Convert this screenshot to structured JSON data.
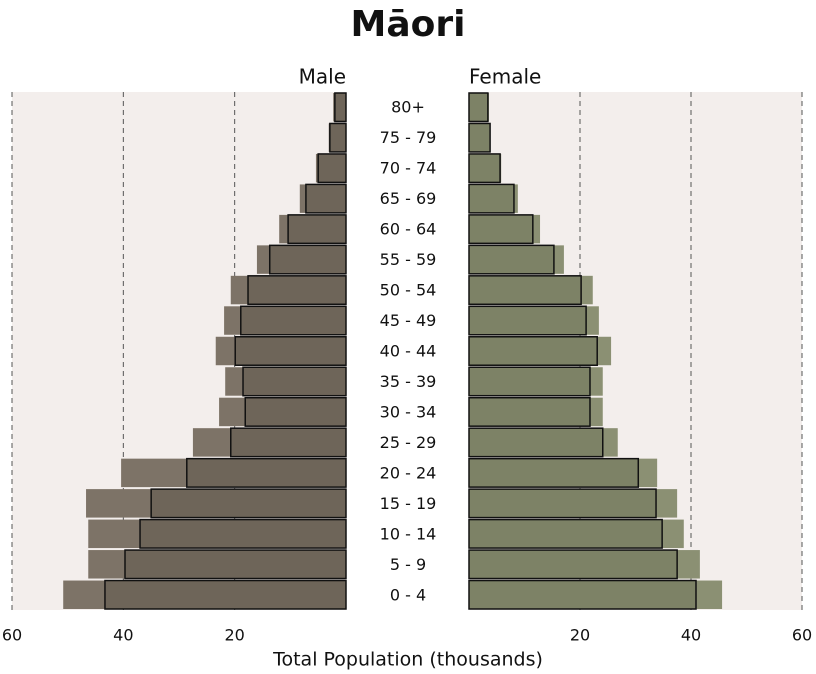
{
  "chart_data": {
    "type": "pyramid",
    "title": "Māori",
    "categories": [
      "80+",
      "75 - 79",
      "70 - 74",
      "65 - 69",
      "60 - 64",
      "55 - 59",
      "50 - 54",
      "45 - 49",
      "40 - 44",
      "35 - 39",
      "30 - 34",
      "25 - 29",
      "20 - 24",
      "15 - 19",
      "10 - 14",
      "5 - 9",
      "0 - 4"
    ],
    "series": [
      {
        "name": "Male",
        "side": "left",
        "color": "#6e6559",
        "shadow_color": "#7d7367",
        "values": [
          2,
          2.9,
          5,
          7.2,
          10.4,
          13.7,
          17.6,
          18.9,
          19.9,
          18.5,
          18.1,
          20.7,
          28.6,
          35,
          37,
          39.7,
          43.3
        ],
        "shadow_values": [
          2.3,
          3.1,
          5.4,
          8.3,
          12,
          16,
          20.7,
          21.9,
          23.4,
          21.7,
          22.8,
          27.5,
          40.4,
          46.7,
          46.3,
          46.3,
          50.8
        ]
      },
      {
        "name": "Female",
        "side": "right",
        "color": "#7d8266",
        "shadow_color": "#8b9073",
        "values": [
          3.4,
          3.8,
          5.6,
          8.1,
          11.5,
          15.3,
          20.2,
          21.1,
          23.1,
          21.8,
          21.8,
          24.1,
          30.5,
          33.7,
          34.8,
          37.5,
          40.9
        ],
        "shadow_values": [
          3.6,
          3.8,
          5.8,
          8.8,
          12.8,
          17.1,
          22.3,
          23.4,
          25.6,
          24.1,
          24.1,
          26.8,
          33.9,
          37.5,
          38.7,
          41.6,
          45.6
        ]
      }
    ],
    "xlim": [
      0,
      60
    ],
    "xticks": [
      20,
      40,
      60
    ],
    "grid": true,
    "xlabel": "Total Population (thousands)"
  }
}
